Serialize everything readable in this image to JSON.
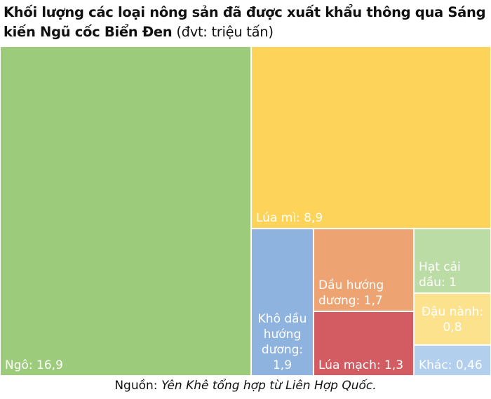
{
  "header": {
    "title_bold": "Khối lượng các loại nông sản đã được xuất khẩu thông qua Sáng kiến Ngũ cốc Biển Đen",
    "title_unit": "(đvt: triệu tấn)"
  },
  "footer": {
    "source_prefix": "Nguồn:",
    "source_text": "Yên Khê tổng hợp từ Liên Hợp Quốc."
  },
  "chart_data": {
    "type": "treemap",
    "title": "Khối lượng các loại nông sản đã được xuất khẩu thông qua Sáng kiến Ngũ cốc Biển Đen",
    "unit": "(đvt: triệu tấn)",
    "items": [
      {
        "name": "Ngô",
        "value": 16.9,
        "display": "16,9",
        "color": "#9ccb7c"
      },
      {
        "name": "Lúa mì",
        "value": 8.9,
        "display": "8,9",
        "color": "#fdd35a"
      },
      {
        "name": "Khô dầu hướng dương",
        "value": 1.9,
        "display": "1,9",
        "color": "#8db3de"
      },
      {
        "name": "Dầu hướng dương",
        "value": 1.7,
        "display": "1,7",
        "color": "#eea373"
      },
      {
        "name": "Lúa mạch",
        "value": 1.3,
        "display": "1,3",
        "color": "#d35b62"
      },
      {
        "name": "Hạt cải dầu",
        "value": 1.0,
        "display": "1",
        "color": "#bcdca6"
      },
      {
        "name": "Đậu nành",
        "value": 0.8,
        "display": "0,8",
        "color": "#fde28e"
      },
      {
        "name": "Khác",
        "value": 0.46,
        "display": "0,46",
        "color": "#b2cfee"
      }
    ]
  }
}
